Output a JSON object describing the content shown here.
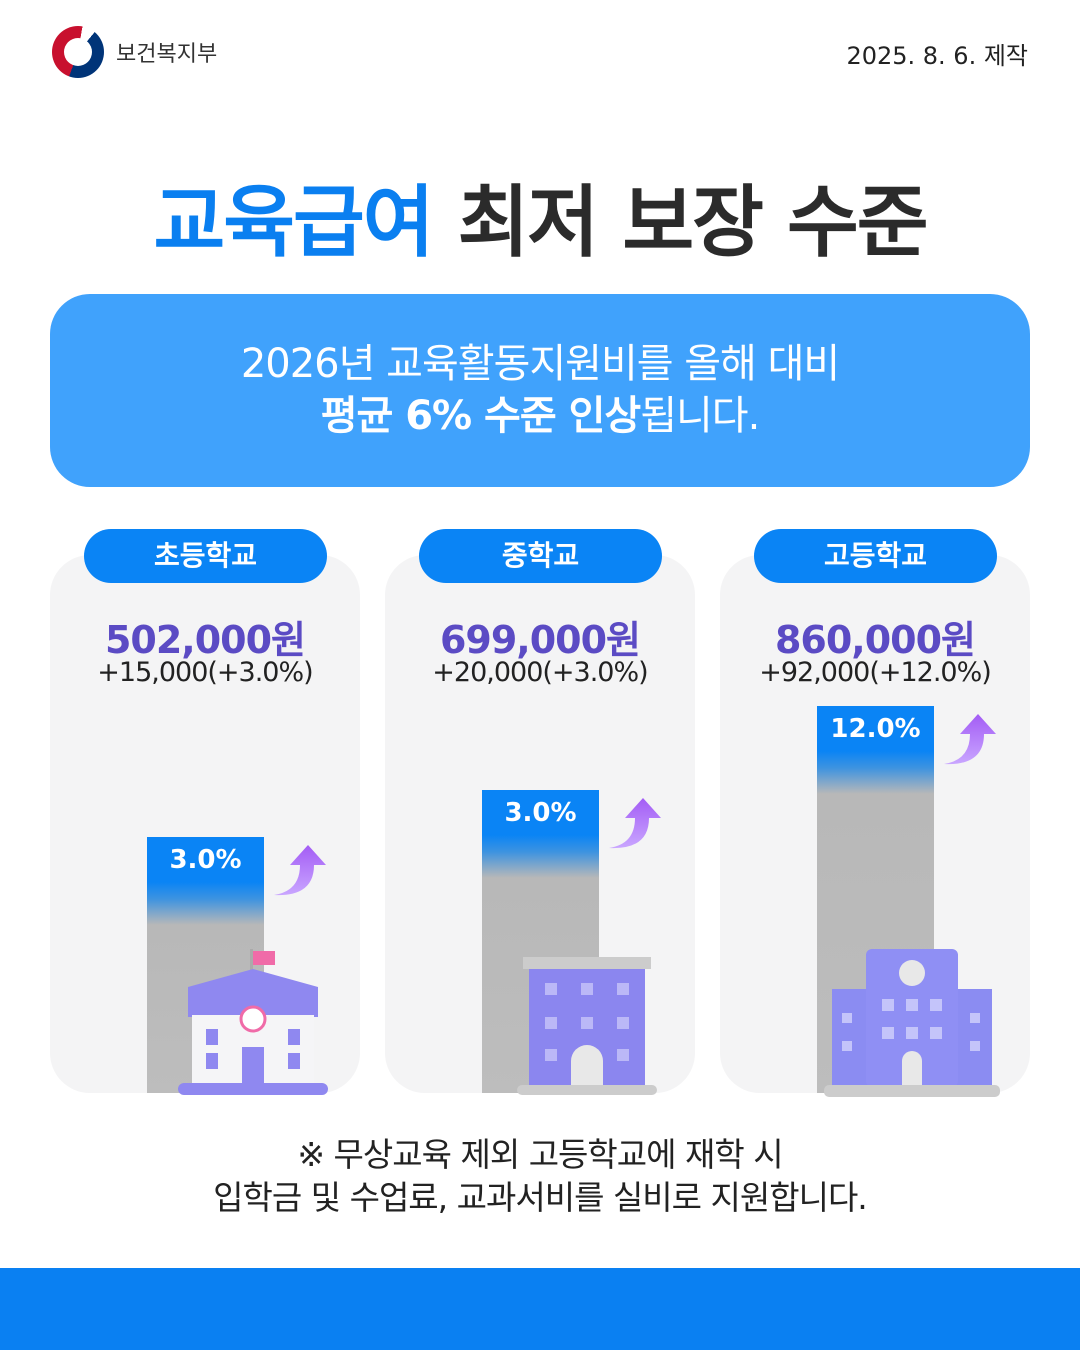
{
  "header": {
    "org": "보건복지부",
    "date": "2025. 8. 6. 제작"
  },
  "title": {
    "highlight": "교육급여",
    "rest": " 최저 보장 수준"
  },
  "banner": {
    "line1": "2026년 교육활동지원비를 올해 대비",
    "line2_bold": "평균 6% 수준 인상",
    "line2_rest": "됩니다."
  },
  "colors": {
    "accent": "#0a84f5",
    "price": "#5b4bc4",
    "banner": "#40a2fc"
  },
  "chart_data": {
    "type": "bar",
    "categories": [
      "초등학교",
      "중학교",
      "고등학교"
    ],
    "values": [
      3.0,
      3.0,
      12.0
    ],
    "value_labels": [
      "3.0%",
      "3.0%",
      "12.0%"
    ],
    "amounts": [
      "502,000원",
      "699,000원",
      "860,000원"
    ],
    "changes": [
      "+15,000(+3.0%)",
      "+20,000(+3.0%)",
      "+92,000(+12.0%)"
    ],
    "icons": [
      "elementary-school-icon",
      "middle-school-icon",
      "high-school-icon"
    ]
  },
  "note": {
    "line1": "※ 무상교육 제외 고등학교에 재학 시",
    "line2": "입학금 및 수업료, 교과서비를 실비로 지원합니다."
  }
}
